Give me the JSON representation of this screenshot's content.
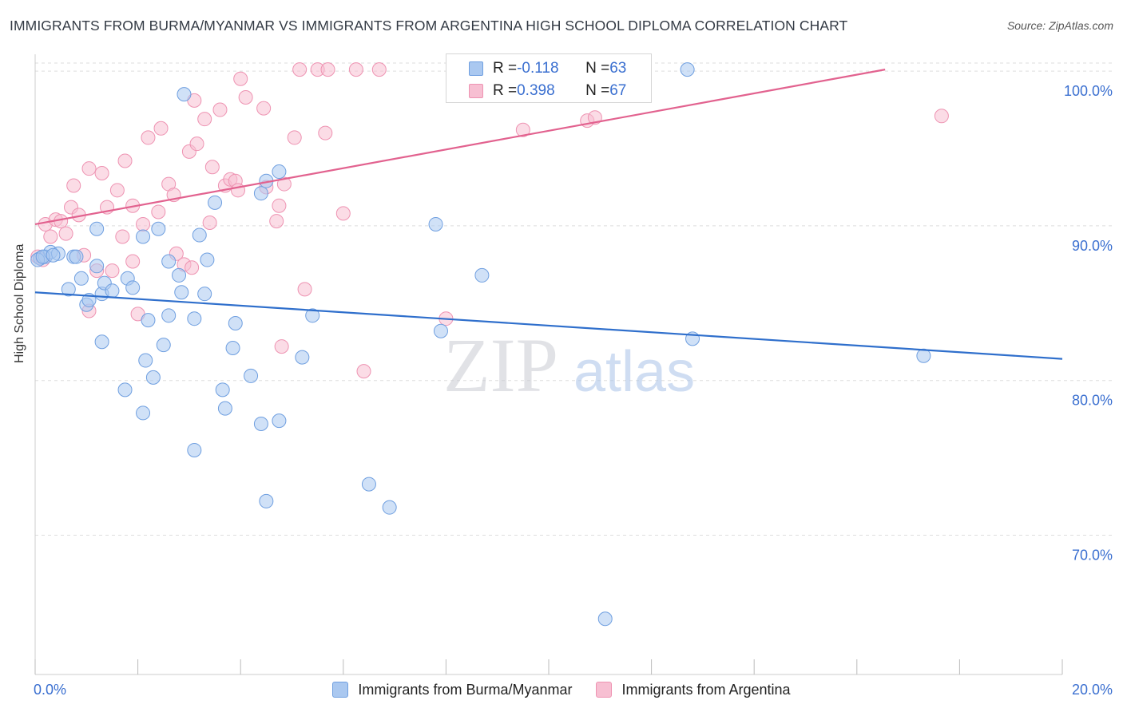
{
  "header": {
    "title": "IMMIGRANTS FROM BURMA/MYANMAR VS IMMIGRANTS FROM ARGENTINA HIGH SCHOOL DIPLOMA CORRELATION CHART",
    "source": "Source: ZipAtlas.com"
  },
  "watermark": {
    "zip": "ZIP",
    "atlas": "atlas"
  },
  "stats": {
    "burma": {
      "r_label": "R = ",
      "r_value": "-0.118",
      "n_label": "N = ",
      "n_value": "63"
    },
    "argentina": {
      "r_label": "R = ",
      "r_value": "0.398",
      "n_label": "N = ",
      "n_value": "67"
    }
  },
  "legend": {
    "burma": "Immigrants from Burma/Myanmar",
    "argentina": "Immigrants from Argentina"
  },
  "colors": {
    "burma_fill": "#aac8f0",
    "burma_stroke": "#6f9fe0",
    "burma_line": "#2f6fcc",
    "argentina_fill": "#f7bfd2",
    "argentina_stroke": "#ee93b2",
    "argentina_line": "#e2628f",
    "tick_label": "#3a6fd0",
    "grid": "#dddddd"
  },
  "chart_data": {
    "type": "scatter",
    "ylabel": "High School Diploma",
    "xlim": [
      0,
      20
    ],
    "ylim": [
      61,
      101.5
    ],
    "x_tick_labels": [
      "0.0%",
      "20.0%"
    ],
    "y_ticks": [
      70,
      80,
      90,
      100
    ],
    "y_tick_labels": [
      "70.0%",
      "80.0%",
      "90.0%",
      "100.0%"
    ],
    "grid": true,
    "series": [
      {
        "name": "Immigrants from Burma/Myanmar",
        "trend": {
          "x": [
            0,
            20
          ],
          "y": [
            85.7,
            81.4
          ]
        },
        "points": [
          [
            0.1,
            87.9
          ],
          [
            0.2,
            88.0
          ],
          [
            0.3,
            88.3
          ],
          [
            0.45,
            88.2
          ],
          [
            0.75,
            88.0
          ],
          [
            0.8,
            88.0
          ],
          [
            0.9,
            86.6
          ],
          [
            0.65,
            85.9
          ],
          [
            1.2,
            87.4
          ],
          [
            1.2,
            89.8
          ],
          [
            1.0,
            84.9
          ],
          [
            1.05,
            85.2
          ],
          [
            1.3,
            85.6
          ],
          [
            1.35,
            86.3
          ],
          [
            1.5,
            85.8
          ],
          [
            1.8,
            86.6
          ],
          [
            1.9,
            86.0
          ],
          [
            1.3,
            82.5
          ],
          [
            1.75,
            79.4
          ],
          [
            2.1,
            77.9
          ],
          [
            2.15,
            81.3
          ],
          [
            2.2,
            83.9
          ],
          [
            2.3,
            80.2
          ],
          [
            2.4,
            89.8
          ],
          [
            2.1,
            89.3
          ],
          [
            2.5,
            82.3
          ],
          [
            2.6,
            84.2
          ],
          [
            2.6,
            87.7
          ],
          [
            2.8,
            86.8
          ],
          [
            2.85,
            85.7
          ],
          [
            2.9,
            98.5
          ],
          [
            3.1,
            75.5
          ],
          [
            3.1,
            84.0
          ],
          [
            3.2,
            89.4
          ],
          [
            3.3,
            85.6
          ],
          [
            3.35,
            87.8
          ],
          [
            3.5,
            91.5
          ],
          [
            3.65,
            79.4
          ],
          [
            3.7,
            78.2
          ],
          [
            3.85,
            82.1
          ],
          [
            3.9,
            83.7
          ],
          [
            4.2,
            80.3
          ],
          [
            4.4,
            92.1
          ],
          [
            4.4,
            77.2
          ],
          [
            4.5,
            92.9
          ],
          [
            4.5,
            72.2
          ],
          [
            4.75,
            77.4
          ],
          [
            4.75,
            93.5
          ],
          [
            5.2,
            81.5
          ],
          [
            5.4,
            84.2
          ],
          [
            6.5,
            73.3
          ],
          [
            6.9,
            71.8
          ],
          [
            7.8,
            90.1
          ],
          [
            7.9,
            83.2
          ],
          [
            8.7,
            86.8
          ],
          [
            9.85,
            100.1
          ],
          [
            11.1,
            64.6
          ],
          [
            12.8,
            82.7
          ],
          [
            12.7,
            100.1
          ],
          [
            17.3,
            81.6
          ],
          [
            0.05,
            87.8
          ],
          [
            0.15,
            88.0
          ],
          [
            0.35,
            88.1
          ]
        ]
      },
      {
        "name": "Immigrants from Argentina",
        "trend": {
          "x": [
            0,
            16.55
          ],
          "y": [
            90.1,
            100.1
          ]
        },
        "points": [
          [
            0.05,
            88.0
          ],
          [
            0.15,
            87.8
          ],
          [
            0.2,
            90.1
          ],
          [
            0.3,
            89.3
          ],
          [
            0.4,
            90.4
          ],
          [
            0.5,
            90.3
          ],
          [
            0.6,
            89.5
          ],
          [
            0.7,
            91.2
          ],
          [
            0.75,
            92.6
          ],
          [
            0.85,
            90.7
          ],
          [
            0.95,
            88.1
          ],
          [
            1.05,
            93.7
          ],
          [
            1.05,
            84.5
          ],
          [
            1.2,
            87.1
          ],
          [
            1.3,
            93.4
          ],
          [
            1.4,
            91.2
          ],
          [
            1.5,
            87.1
          ],
          [
            1.6,
            92.3
          ],
          [
            1.7,
            89.3
          ],
          [
            1.75,
            94.2
          ],
          [
            1.9,
            87.7
          ],
          [
            1.9,
            91.3
          ],
          [
            2.0,
            84.3
          ],
          [
            2.1,
            90.1
          ],
          [
            2.2,
            95.7
          ],
          [
            2.4,
            90.9
          ],
          [
            2.45,
            96.3
          ],
          [
            2.6,
            92.7
          ],
          [
            2.7,
            92.0
          ],
          [
            2.75,
            88.2
          ],
          [
            2.9,
            87.5
          ],
          [
            3.0,
            94.8
          ],
          [
            3.05,
            87.3
          ],
          [
            3.1,
            98.1
          ],
          [
            3.15,
            95.3
          ],
          [
            3.3,
            96.9
          ],
          [
            3.4,
            90.2
          ],
          [
            3.45,
            93.8
          ],
          [
            3.6,
            97.5
          ],
          [
            3.7,
            92.6
          ],
          [
            3.8,
            93.0
          ],
          [
            3.9,
            92.9
          ],
          [
            3.95,
            92.3
          ],
          [
            4.0,
            99.5
          ],
          [
            4.1,
            98.3
          ],
          [
            4.45,
            97.6
          ],
          [
            4.5,
            92.5
          ],
          [
            4.7,
            90.3
          ],
          [
            4.75,
            91.3
          ],
          [
            4.8,
            82.2
          ],
          [
            4.85,
            92.7
          ],
          [
            5.05,
            95.7
          ],
          [
            5.15,
            100.1
          ],
          [
            5.25,
            85.9
          ],
          [
            5.5,
            100.1
          ],
          [
            5.65,
            96.0
          ],
          [
            5.7,
            100.1
          ],
          [
            6.0,
            90.8
          ],
          [
            6.25,
            100.1
          ],
          [
            6.4,
            80.6
          ],
          [
            6.7,
            100.1
          ],
          [
            8.0,
            84.0
          ],
          [
            8.15,
            100.1
          ],
          [
            9.5,
            96.2
          ],
          [
            10.75,
            96.8
          ],
          [
            10.9,
            97.0
          ],
          [
            17.65,
            97.1
          ]
        ]
      }
    ]
  }
}
